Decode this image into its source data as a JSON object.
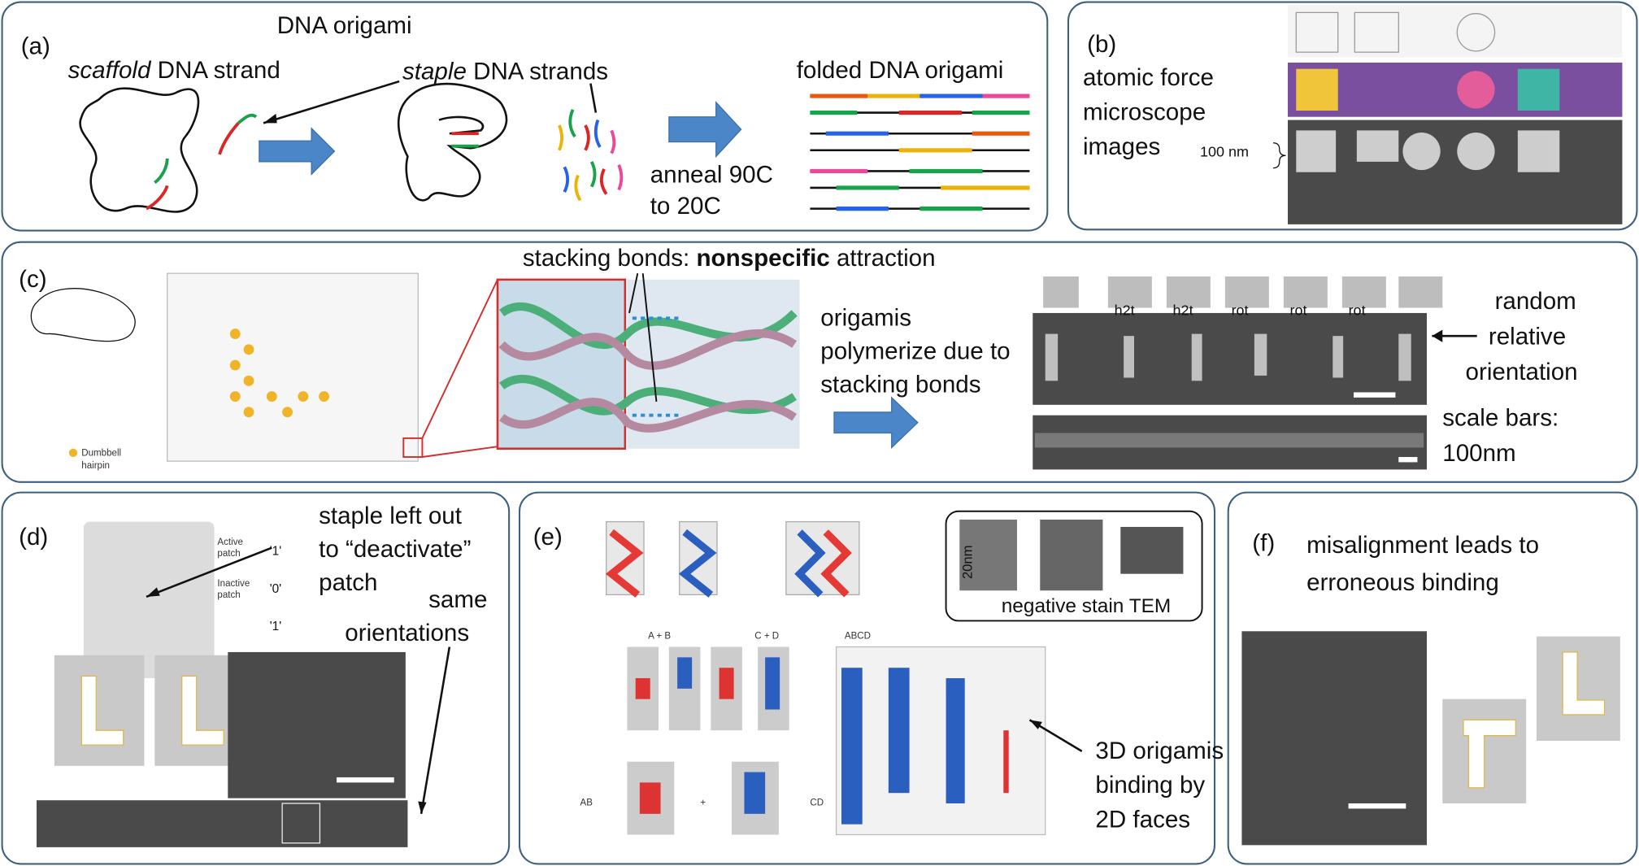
{
  "panels": {
    "a": {
      "label": "(a)",
      "title": "DNA origami",
      "scaffold_italic": "scaffold",
      "scaffold_rest": " DNA strand",
      "staple_italic": "staple",
      "staple_rest": " DNA strands",
      "folded": "folded DNA origami",
      "anneal_1": "anneal 90C",
      "anneal_2": "to 20C"
    },
    "b": {
      "label": "(b)",
      "line_1": "atomic force",
      "line_2": "microscope",
      "line_3": "images",
      "scale": "100 nm"
    },
    "c": {
      "label": "(c)",
      "stacking_1": "stacking bonds: ",
      "stacking_bold": "nonspecific",
      "stacking_2": " attraction",
      "poly_1": "origamis",
      "poly_2": "polymerize due to",
      "poly_3": "stacking bonds",
      "random_1": "random",
      "random_2": "relative",
      "random_3": "orientation",
      "scale_1": "scale bars:",
      "scale_2": "100nm",
      "dumbbell_1": "Dumbbell",
      "dumbbell_2": "hairpin",
      "joins": [
        "h2t",
        "h2t",
        "rot",
        "rot",
        "rot"
      ]
    },
    "d": {
      "label": "(d)",
      "staple_1": "staple left out",
      "staple_2": "to “deactivate”",
      "staple_3": "patch",
      "same_1": "same",
      "same_2": "orientations",
      "active_1": "Active",
      "active_2": "patch",
      "inactive_1": "Inactive",
      "inactive_2": "patch",
      "bits": [
        "'1'",
        "'0'",
        "'1'"
      ]
    },
    "e": {
      "label": "(e)",
      "scale": "20nm",
      "tem": "negative stain TEM",
      "ab_top": "A + B",
      "cd_top": "C + D",
      "abcd": "ABCD",
      "ab": "AB",
      "cd": "CD",
      "plus": "+",
      "bind_1": "3D origamis",
      "bind_2": "binding by",
      "bind_3": "2D faces"
    },
    "f": {
      "label": "(f)",
      "line_1": "misalignment leads to",
      "line_2": "erroneous binding"
    }
  }
}
